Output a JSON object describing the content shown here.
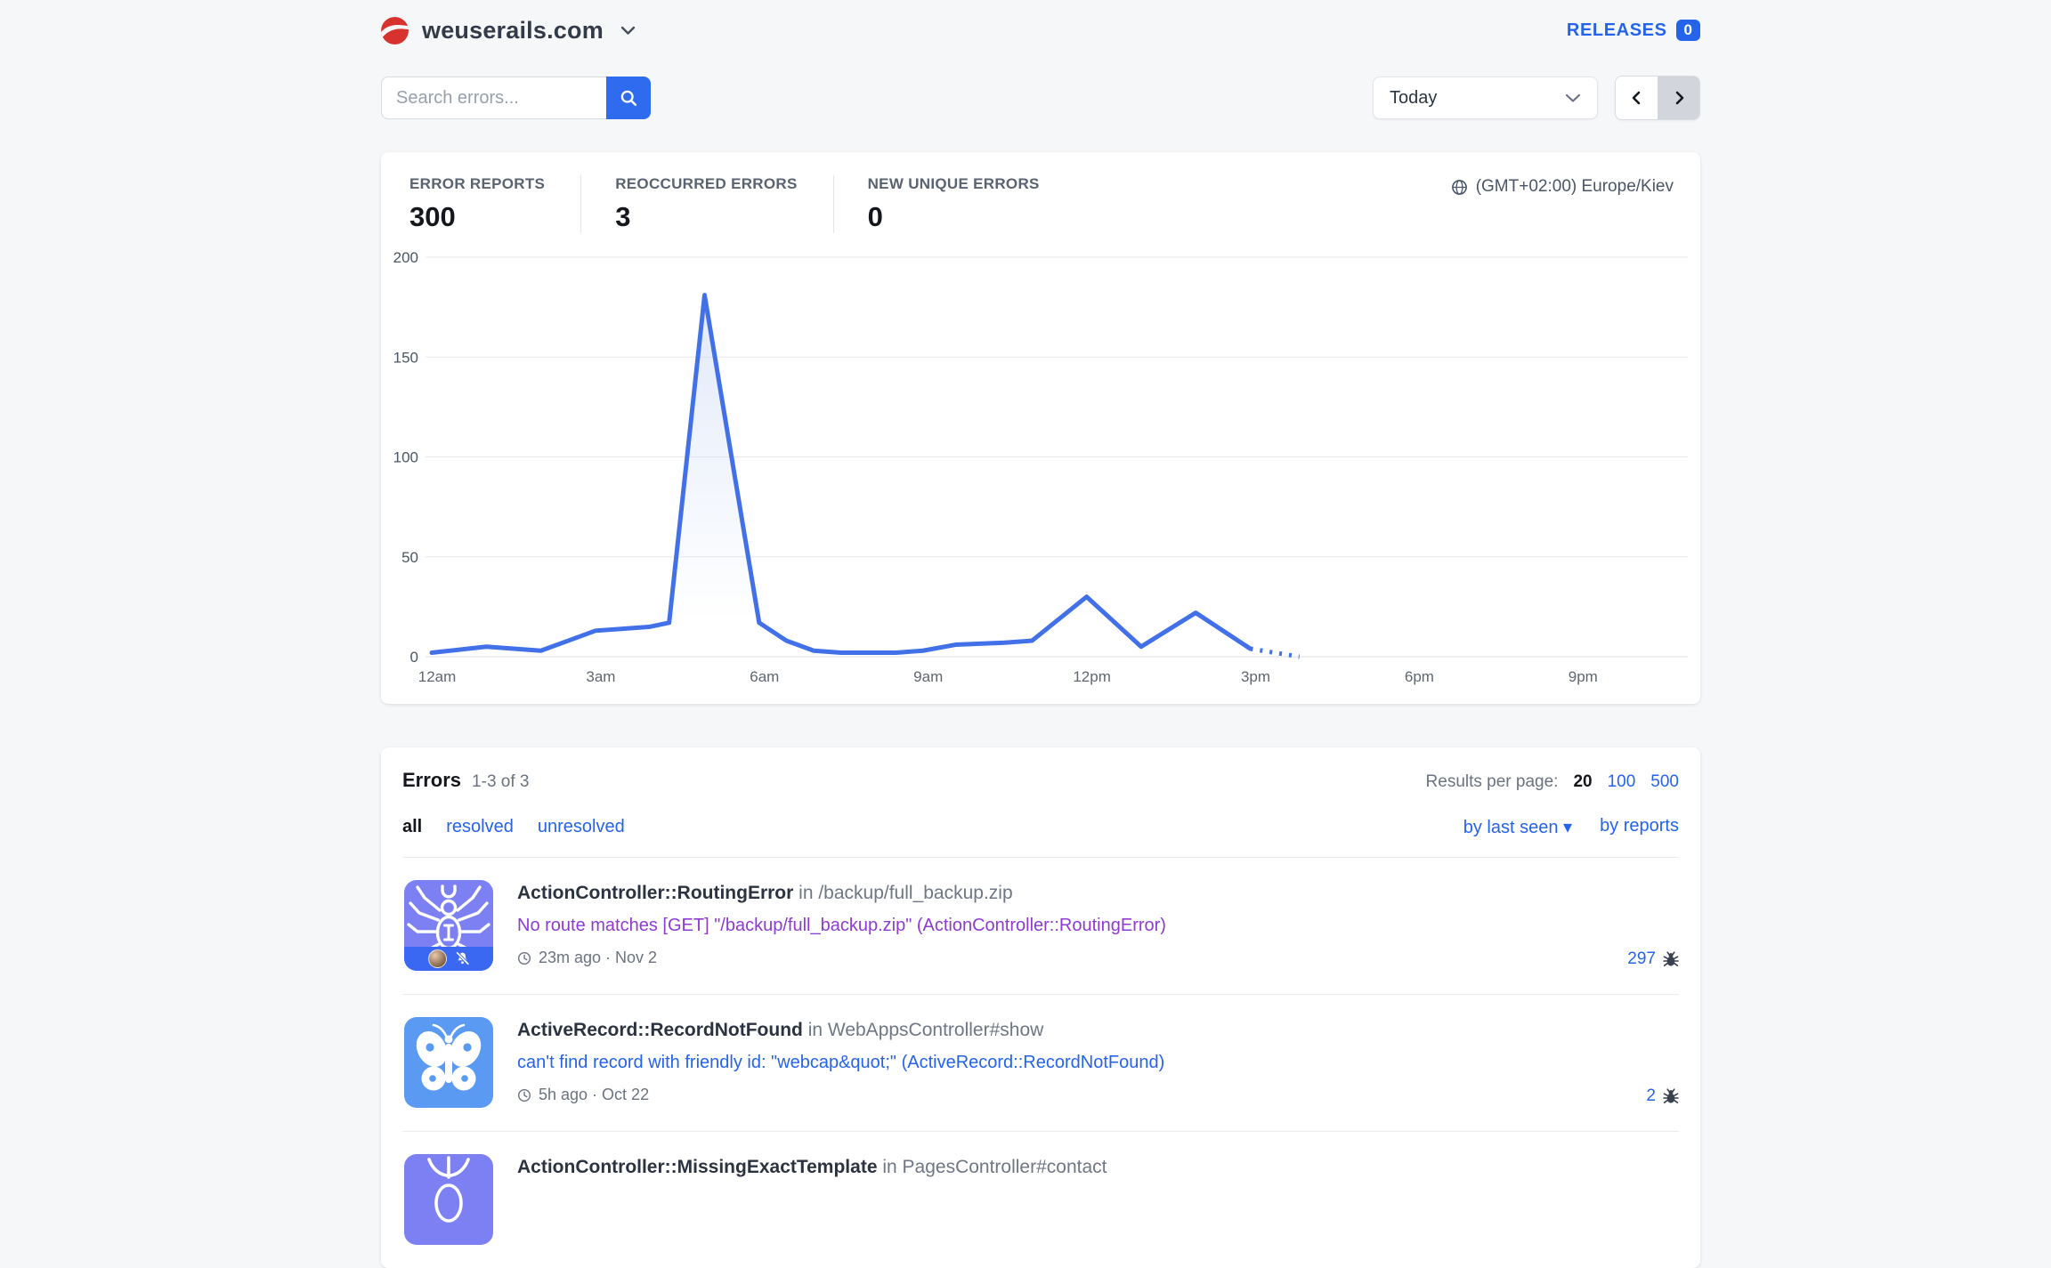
{
  "colors": {
    "accent_blue": "#2563eb",
    "button_blue": "#2e6bee",
    "chart_line": "#4170e8",
    "visited_link_purple": "#8d3bd3",
    "tile_violet": "#7c80f2",
    "tile_blue": "#5a9af3",
    "tile_strip_blue": "#3b68f2",
    "logo_red": "#d7322e",
    "page_background": "#f6f7f8"
  },
  "header": {
    "site_name": "weuserails.com",
    "releases_label": "RELEASES",
    "releases_count": "0"
  },
  "toolbar": {
    "search_placeholder": "Search errors...",
    "period_selected": "Today"
  },
  "overview": {
    "stats": [
      {
        "label": "ERROR REPORTS",
        "value": "300"
      },
      {
        "label": "REOCCURRED ERRORS",
        "value": "3"
      },
      {
        "label": "NEW UNIQUE ERRORS",
        "value": "0"
      }
    ],
    "timezone": "(GMT+02:00) Europe/Kiev"
  },
  "chart_data": {
    "type": "line",
    "title": "",
    "xlabel": "",
    "ylabel": "",
    "ylim": [
      0,
      200
    ],
    "xlim_hours": [
      0,
      24
    ],
    "yticks": [
      0,
      50,
      100,
      150,
      200
    ],
    "xticks": [
      {
        "hour": 0,
        "label": "12am"
      },
      {
        "hour": 3,
        "label": "3am"
      },
      {
        "hour": 6,
        "label": "6am"
      },
      {
        "hour": 9,
        "label": "9am"
      },
      {
        "hour": 12,
        "label": "12pm"
      },
      {
        "hour": 15,
        "label": "3pm"
      },
      {
        "hour": 18,
        "label": "6pm"
      },
      {
        "hour": 21,
        "label": "9pm"
      }
    ],
    "grid": true,
    "legend": false,
    "line_color": "#4170e8",
    "series": [
      {
        "id": "error-reports",
        "line_style": "solid",
        "points": [
          [
            0,
            2
          ],
          [
            1,
            5
          ],
          [
            2,
            3
          ],
          [
            3,
            13
          ],
          [
            3.5,
            14
          ],
          [
            4,
            15
          ],
          [
            4.35,
            17
          ],
          [
            5,
            181
          ],
          [
            6,
            17
          ],
          [
            6.5,
            8
          ],
          [
            7,
            3
          ],
          [
            7.5,
            2
          ],
          [
            8.5,
            2
          ],
          [
            9,
            3
          ],
          [
            9.6,
            6
          ],
          [
            10.5,
            7
          ],
          [
            11,
            8
          ],
          [
            12,
            30
          ],
          [
            13,
            5
          ],
          [
            14,
            22
          ],
          [
            15,
            4
          ]
        ]
      },
      {
        "id": "current-hour-projection",
        "line_style": "dotted",
        "points": [
          [
            15,
            4
          ],
          [
            15.9,
            0
          ]
        ]
      }
    ]
  },
  "errors": {
    "title": "Errors",
    "range": "1-3 of 3",
    "results_per_page_label": "Results per page:",
    "page_sizes": [
      {
        "label": "20",
        "active": true
      },
      {
        "label": "100",
        "active": false
      },
      {
        "label": "500",
        "active": false
      }
    ],
    "filters": [
      {
        "label": "all",
        "active": true
      },
      {
        "label": "resolved",
        "active": false
      },
      {
        "label": "unresolved",
        "active": false
      }
    ],
    "sorts": {
      "by_last_seen": "by last seen",
      "caret": "▾",
      "by_reports": "by reports"
    },
    "rows": [
      {
        "type": "ActionController::RoutingError",
        "context": "in /backup/full_backup.zip",
        "message": "No route matches [GET] \"/backup/full_backup.zip\" (ActionController::RoutingError)",
        "last_seen": "23m ago · Nov 2",
        "count": "297"
      },
      {
        "type": "ActiveRecord::RecordNotFound",
        "context": "in WebAppsController#show",
        "message": "can't find record with friendly id: \"webcap&quot;\" (ActiveRecord::RecordNotFound)",
        "last_seen": "5h ago · Oct 22",
        "count": "2"
      },
      {
        "type": "ActionController::MissingExactTemplate",
        "context": "in PagesController#contact"
      }
    ]
  }
}
